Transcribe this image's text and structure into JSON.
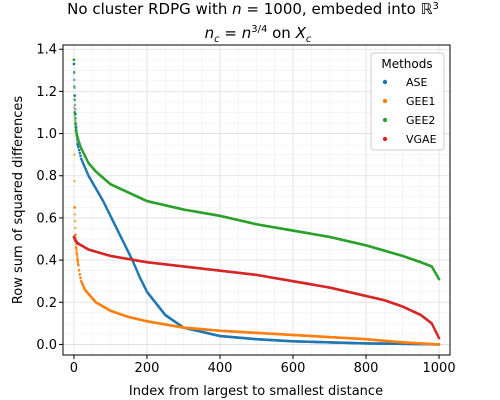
{
  "chart_data": {
    "type": "scatter",
    "title_line1": "No cluster RDPG with n = 1000, embeded into ℝ³",
    "title_line2": "n_c = n^{3/4} on X_c",
    "xlabel": "Index from largest to smallest distance",
    "ylabel": "Row sum of squared differences",
    "xlim": [
      -30,
      1030
    ],
    "ylim": [
      -0.05,
      1.42
    ],
    "x_ticks": [
      0,
      200,
      400,
      600,
      800,
      1000
    ],
    "y_ticks": [
      0.0,
      0.2,
      0.4,
      0.6,
      0.8,
      1.0,
      1.2,
      1.4
    ],
    "x_tick_labels": [
      "0",
      "200",
      "400",
      "600",
      "800",
      "1000"
    ],
    "y_tick_labels": [
      "0.0",
      "0.2",
      "0.4",
      "0.6",
      "0.8",
      "1.0",
      "1.2",
      "1.4"
    ],
    "grid": true,
    "legend": {
      "title": "Methods",
      "placement": "top-right"
    },
    "series": [
      {
        "name": "ASE",
        "color": "#1f77b4",
        "x": [
          0,
          2,
          5,
          10,
          20,
          40,
          60,
          80,
          100,
          120,
          140,
          160,
          180,
          200,
          250,
          300,
          400,
          500,
          600,
          700,
          800,
          900,
          950,
          1000
        ],
        "y": [
          1.33,
          1.18,
          1.05,
          0.95,
          0.88,
          0.8,
          0.74,
          0.68,
          0.61,
          0.54,
          0.47,
          0.4,
          0.32,
          0.25,
          0.14,
          0.08,
          0.04,
          0.025,
          0.015,
          0.01,
          0.005,
          0.003,
          0.002,
          0.0
        ]
      },
      {
        "name": "GEE1",
        "color": "#ff7f0e",
        "x": [
          0,
          1,
          2,
          4,
          6,
          10,
          15,
          20,
          30,
          40,
          60,
          80,
          100,
          150,
          200,
          300,
          400,
          500,
          600,
          700,
          800,
          900,
          1000
        ],
        "y": [
          1.35,
          0.9,
          0.65,
          0.52,
          0.46,
          0.4,
          0.34,
          0.3,
          0.26,
          0.24,
          0.2,
          0.18,
          0.16,
          0.13,
          0.11,
          0.08,
          0.065,
          0.055,
          0.045,
          0.035,
          0.025,
          0.01,
          0.0
        ]
      },
      {
        "name": "GEE2",
        "color": "#2ca02c",
        "x": [
          0,
          2,
          5,
          10,
          20,
          40,
          60,
          80,
          100,
          150,
          200,
          300,
          400,
          500,
          600,
          700,
          800,
          900,
          950,
          980,
          1000
        ],
        "y": [
          1.35,
          1.1,
          1.02,
          0.98,
          0.93,
          0.86,
          0.82,
          0.79,
          0.76,
          0.72,
          0.68,
          0.64,
          0.61,
          0.57,
          0.54,
          0.51,
          0.47,
          0.42,
          0.39,
          0.37,
          0.31
        ]
      },
      {
        "name": "VGAE",
        "color": "#d62728",
        "x": [
          0,
          5,
          10,
          20,
          40,
          60,
          80,
          100,
          200,
          300,
          400,
          500,
          600,
          700,
          800,
          850,
          900,
          950,
          980,
          1000
        ],
        "y": [
          0.51,
          0.49,
          0.48,
          0.47,
          0.45,
          0.44,
          0.43,
          0.42,
          0.39,
          0.37,
          0.35,
          0.33,
          0.3,
          0.27,
          0.23,
          0.21,
          0.18,
          0.14,
          0.1,
          0.03
        ]
      }
    ]
  }
}
